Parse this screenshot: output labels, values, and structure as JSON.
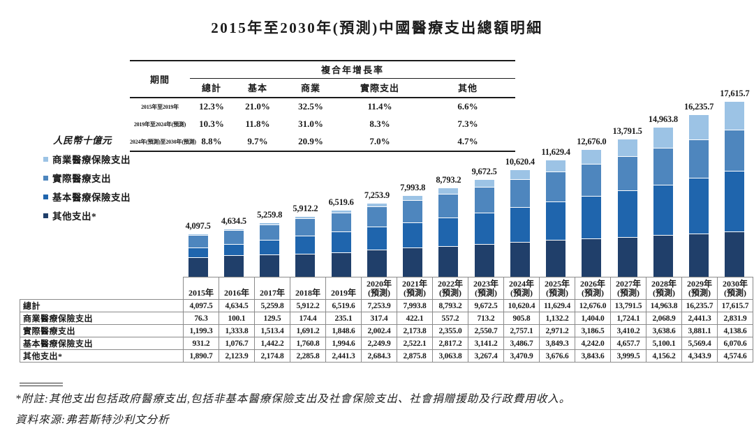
{
  "title": "2015年至2030年(預測)中國醫療支出總額明細",
  "cagr_table": {
    "period_header": "期間",
    "group_header": "複合年增長率",
    "columns": [
      "總計",
      "基本",
      "商業",
      "實際支出",
      "其他"
    ],
    "rows": [
      {
        "period": "2015年至2019年",
        "values": [
          "12.3%",
          "21.0%",
          "32.5%",
          "11.4%",
          "6.6%"
        ]
      },
      {
        "period": "2019年至2024年(預測)",
        "values": [
          "10.3%",
          "11.8%",
          "31.0%",
          "8.3%",
          "7.3%"
        ]
      },
      {
        "period": "2024年(預測)至2030年(預測)",
        "values": [
          "8.8%",
          "9.7%",
          "20.9%",
          "7.0%",
          "4.7%"
        ]
      }
    ]
  },
  "unit_label": "人民幣十億元",
  "legend": [
    {
      "label": "商業醫療保險支出",
      "color": "#9cc3e5"
    },
    {
      "label": "實際醫療支出",
      "color": "#4e86be"
    },
    {
      "label": "基本醫療保險支出",
      "color": "#1f65ad"
    },
    {
      "label": "其他支出*",
      "color": "#203f6a"
    }
  ],
  "chart_data": {
    "type": "bar",
    "stacked": true,
    "title": "2015年至2030年(預測)中國醫療支出總額明細",
    "ylabel": "人民幣十億元",
    "xlabel": "",
    "grid": false,
    "legend_position": "left",
    "categories": [
      "2015年",
      "2016年",
      "2017年",
      "2018年",
      "2019年",
      "2020年(預測)",
      "2021年(預測)",
      "2022年(預測)",
      "2023年(預測)",
      "2024年(預測)",
      "2025年(預測)",
      "2026年(預測)",
      "2027年(預測)",
      "2028年(預測)",
      "2029年(預測)",
      "2030年(預測)"
    ],
    "totals": [
      4097.5,
      4634.5,
      5259.8,
      5912.2,
      6519.6,
      7253.9,
      7993.8,
      8793.2,
      9672.5,
      10620.4,
      11629.4,
      12676.0,
      13791.5,
      14963.8,
      16235.7,
      17615.7
    ],
    "total_labels": [
      "4,097.5",
      "4,634.5",
      "5,259.8",
      "5,912.2",
      "6,519.6",
      "7,253.9",
      "7,993.8",
      "8,793.2",
      "9,672.5",
      "10,620.4",
      "11,629.4",
      "12,676.0",
      "13,791.5",
      "14,963.8",
      "16,235.7",
      "17,615.7"
    ],
    "series": [
      {
        "name": "其他支出*",
        "color": "#203f6a",
        "values": [
          1890.7,
          2123.9,
          2174.8,
          2285.8,
          2441.3,
          2684.3,
          2875.8,
          3063.8,
          3267.4,
          3470.9,
          3676.6,
          3843.6,
          3999.5,
          4156.2,
          4343.9,
          4574.6
        ]
      },
      {
        "name": "基本醫療保險支出",
        "color": "#1f65ad",
        "values": [
          931.2,
          1076.7,
          1442.2,
          1760.8,
          1994.6,
          2249.9,
          2522.1,
          2817.2,
          3141.2,
          3486.7,
          3849.3,
          4242.0,
          4657.7,
          5100.1,
          5569.4,
          6070.6
        ]
      },
      {
        "name": "實際醫療支出",
        "color": "#4e86be",
        "values": [
          1199.3,
          1333.8,
          1513.4,
          1691.2,
          1848.6,
          2002.4,
          2173.8,
          2355.0,
          2550.7,
          2757.1,
          2971.2,
          3186.5,
          3410.2,
          3638.6,
          3881.1,
          4138.6
        ]
      },
      {
        "name": "商業醫療保險支出",
        "color": "#9cc3e5",
        "values": [
          76.3,
          100.1,
          129.5,
          174.4,
          235.1,
          317.4,
          422.1,
          557.2,
          713.2,
          905.8,
          1132.2,
          1404.0,
          1724.1,
          2068.9,
          2441.3,
          2831.9
        ]
      }
    ]
  },
  "data_table": {
    "col_headers": [
      [
        "2015年"
      ],
      [
        "2016年"
      ],
      [
        "2017年"
      ],
      [
        "2018年"
      ],
      [
        "2019年"
      ],
      [
        "2020年",
        "(預測)"
      ],
      [
        "2021年",
        "(預測)"
      ],
      [
        "2022年",
        "(預測)"
      ],
      [
        "2023年",
        "(預測)"
      ],
      [
        "2024年",
        "(預測)"
      ],
      [
        "2025年",
        "(預測)"
      ],
      [
        "2026年",
        "(預測)"
      ],
      [
        "2027年",
        "(預測)"
      ],
      [
        "2028年",
        "(預測)"
      ],
      [
        "2029年",
        "(預測)"
      ],
      [
        "2030年",
        "(預測)"
      ]
    ],
    "rows": [
      {
        "label": "總計",
        "values": [
          "4,097.5",
          "4,634.5",
          "5,259.8",
          "5,912.2",
          "6,519.6",
          "7,253.9",
          "7,993.8",
          "8,793.2",
          "9,672.5",
          "10,620.4",
          "11,629.4",
          "12,676.0",
          "13,791.5",
          "14,963.8",
          "16,235.7",
          "17,615.7"
        ]
      },
      {
        "label": "商業醫療保險支出",
        "values": [
          "76.3",
          "100.1",
          "129.5",
          "174.4",
          "235.1",
          "317.4",
          "422.1",
          "557.2",
          "713.2",
          "905.8",
          "1,132.2",
          "1,404.0",
          "1,724.1",
          "2,068.9",
          "2,441.3",
          "2,831.9"
        ]
      },
      {
        "label": "實際醫療支出",
        "values": [
          "1,199.3",
          "1,333.8",
          "1,513.4",
          "1,691.2",
          "1,848.6",
          "2,002.4",
          "2,173.8",
          "2,355.0",
          "2,550.7",
          "2,757.1",
          "2,971.2",
          "3,186.5",
          "3,410.2",
          "3,638.6",
          "3,881.1",
          "4,138.6"
        ]
      },
      {
        "label": "基本醫療保險支出",
        "values": [
          "931.2",
          "1,076.7",
          "1,442.2",
          "1,760.8",
          "1,994.6",
          "2,249.9",
          "2,522.1",
          "2,817.2",
          "3,141.2",
          "3,486.7",
          "3,849.3",
          "4,242.0",
          "4,657.7",
          "5,100.1",
          "5,569.4",
          "6,070.6"
        ]
      },
      {
        "label": "其他支出*",
        "values": [
          "1,890.7",
          "2,123.9",
          "2,174.8",
          "2,285.8",
          "2,441.3",
          "2,684.3",
          "2,875.8",
          "3,063.8",
          "3,267.4",
          "3,470.9",
          "3,676.6",
          "3,843.6",
          "3,999.5",
          "4,156.2",
          "4,343.9",
          "4,574.6"
        ]
      }
    ]
  },
  "footnotes": {
    "note": "*附註:其他支出包括政府醫療支出,包括非基本醫療保險支出及社會保險支出、社會捐贈援助及行政費用收入。",
    "source": "資料來源:弗若斯特沙利文分析"
  }
}
